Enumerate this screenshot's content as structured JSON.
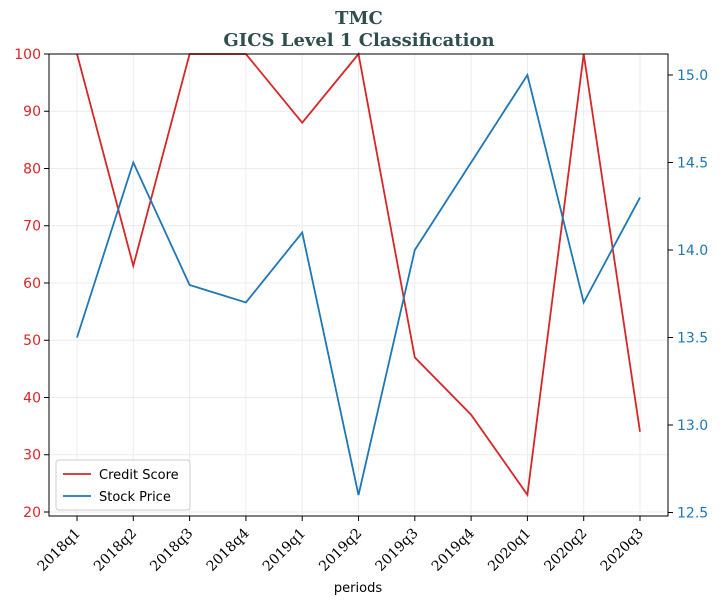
{
  "chart_data": {
    "type": "line",
    "title": "TMC",
    "subtitle": "GICS Level 1 Classification",
    "xlabel": "periods",
    "categories": [
      "2018q1",
      "2018q2",
      "2018q3",
      "2018q4",
      "2019q1",
      "2019q2",
      "2019q3",
      "2019q4",
      "2020q1",
      "2020q2",
      "2020q3"
    ],
    "series": [
      {
        "name": "Credit Score",
        "axis": "left",
        "color": "#d62728",
        "values": [
          100,
          63,
          100,
          100,
          88,
          100,
          47,
          37,
          23,
          100,
          34
        ]
      },
      {
        "name": "Stock Price",
        "axis": "right",
        "color": "#1f77b4",
        "values": [
          13.5,
          14.5,
          13.8,
          13.7,
          14.1,
          12.6,
          14.0,
          14.5,
          15.0,
          13.7,
          14.3
        ]
      }
    ],
    "y_left": {
      "ylim": [
        19.3,
        100
      ],
      "ticks": [
        20,
        30,
        40,
        50,
        60,
        70,
        80,
        90,
        100
      ],
      "color": "#d62728"
    },
    "y_right": {
      "ylim": [
        12.48,
        15.12
      ],
      "ticks": [
        "12.5",
        "13.0",
        "13.5",
        "14.0",
        "14.5",
        "15.0"
      ],
      "color": "#1f77b4"
    },
    "grid": true,
    "legend": "bottom-left"
  }
}
